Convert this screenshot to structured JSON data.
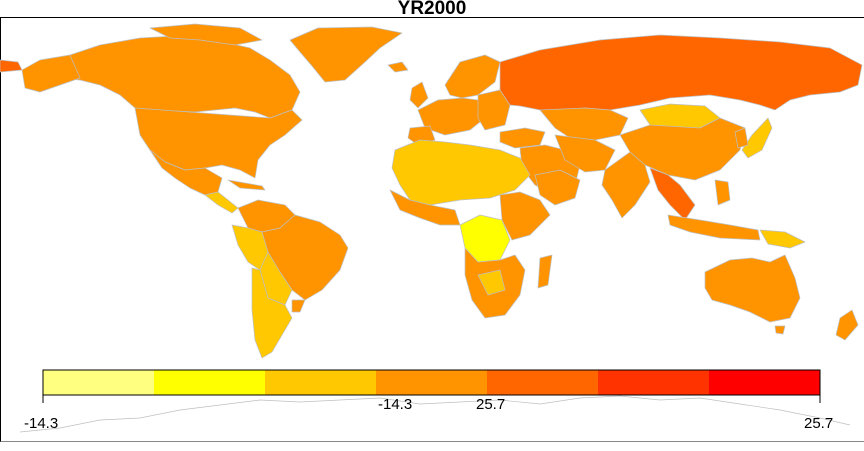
{
  "map": {
    "title": "YR2000"
  },
  "legend": {
    "colors": [
      "#ffff80",
      "#ffff00",
      "#ffc800",
      "#ff9400",
      "#ff6600",
      "#ff3300",
      "#ff0000"
    ],
    "labels": {
      "left": "-14.3",
      "right": "25.7",
      "mid_left": "-14.3",
      "mid_right": "25.7"
    }
  },
  "colors": {
    "border": "#bfbfbf",
    "background": "#ffffff"
  }
}
